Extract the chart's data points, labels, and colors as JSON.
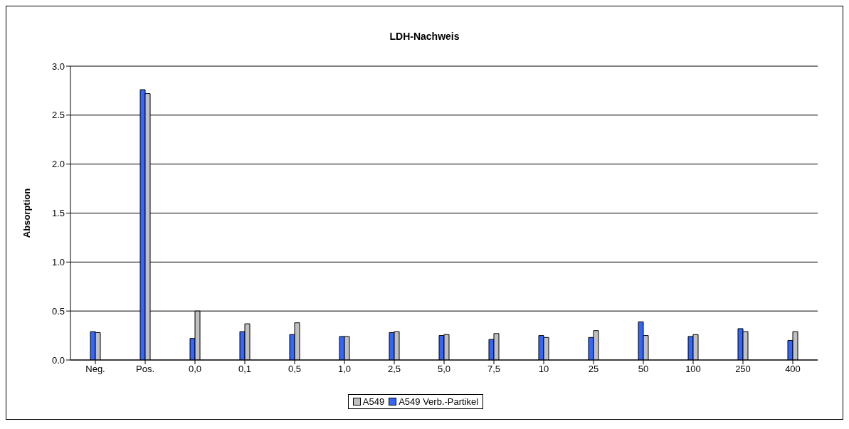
{
  "chart_data": {
    "type": "bar",
    "title": "LDH-Nachweis",
    "ylabel": "Absorption",
    "categories": [
      "Neg.",
      "Pos.",
      "0,0",
      "0,1",
      "0,5",
      "1,0",
      "2,5",
      "5,0",
      "7,5",
      "10",
      "25",
      "50",
      "100",
      "250",
      "400"
    ],
    "series": [
      {
        "name": "A549 Verb.-Partikel",
        "color": "#3366ff",
        "values": [
          0.29,
          2.76,
          0.22,
          0.29,
          0.26,
          0.24,
          0.28,
          0.25,
          0.21,
          0.25,
          0.23,
          0.39,
          0.24,
          0.32,
          0.2
        ]
      },
      {
        "name": "A549",
        "color": "#c0c0c0",
        "values": [
          0.28,
          2.72,
          0.5,
          0.37,
          0.38,
          0.24,
          0.29,
          0.26,
          0.27,
          0.23,
          0.3,
          0.25,
          0.26,
          0.29,
          0.29
        ]
      }
    ],
    "ylim": [
      0,
      3
    ],
    "yticks": [
      {
        "value": 0,
        "label": "0.0"
      },
      {
        "value": 0.5,
        "label": "0.5"
      },
      {
        "value": 1,
        "label": "1.0"
      },
      {
        "value": 1.5,
        "label": "1.5"
      },
      {
        "value": 2,
        "label": "2.0"
      },
      {
        "value": 2.5,
        "label": "2.5"
      },
      {
        "value": 3,
        "label": "3.0"
      }
    ],
    "grid": "y",
    "legend": "bottom"
  }
}
